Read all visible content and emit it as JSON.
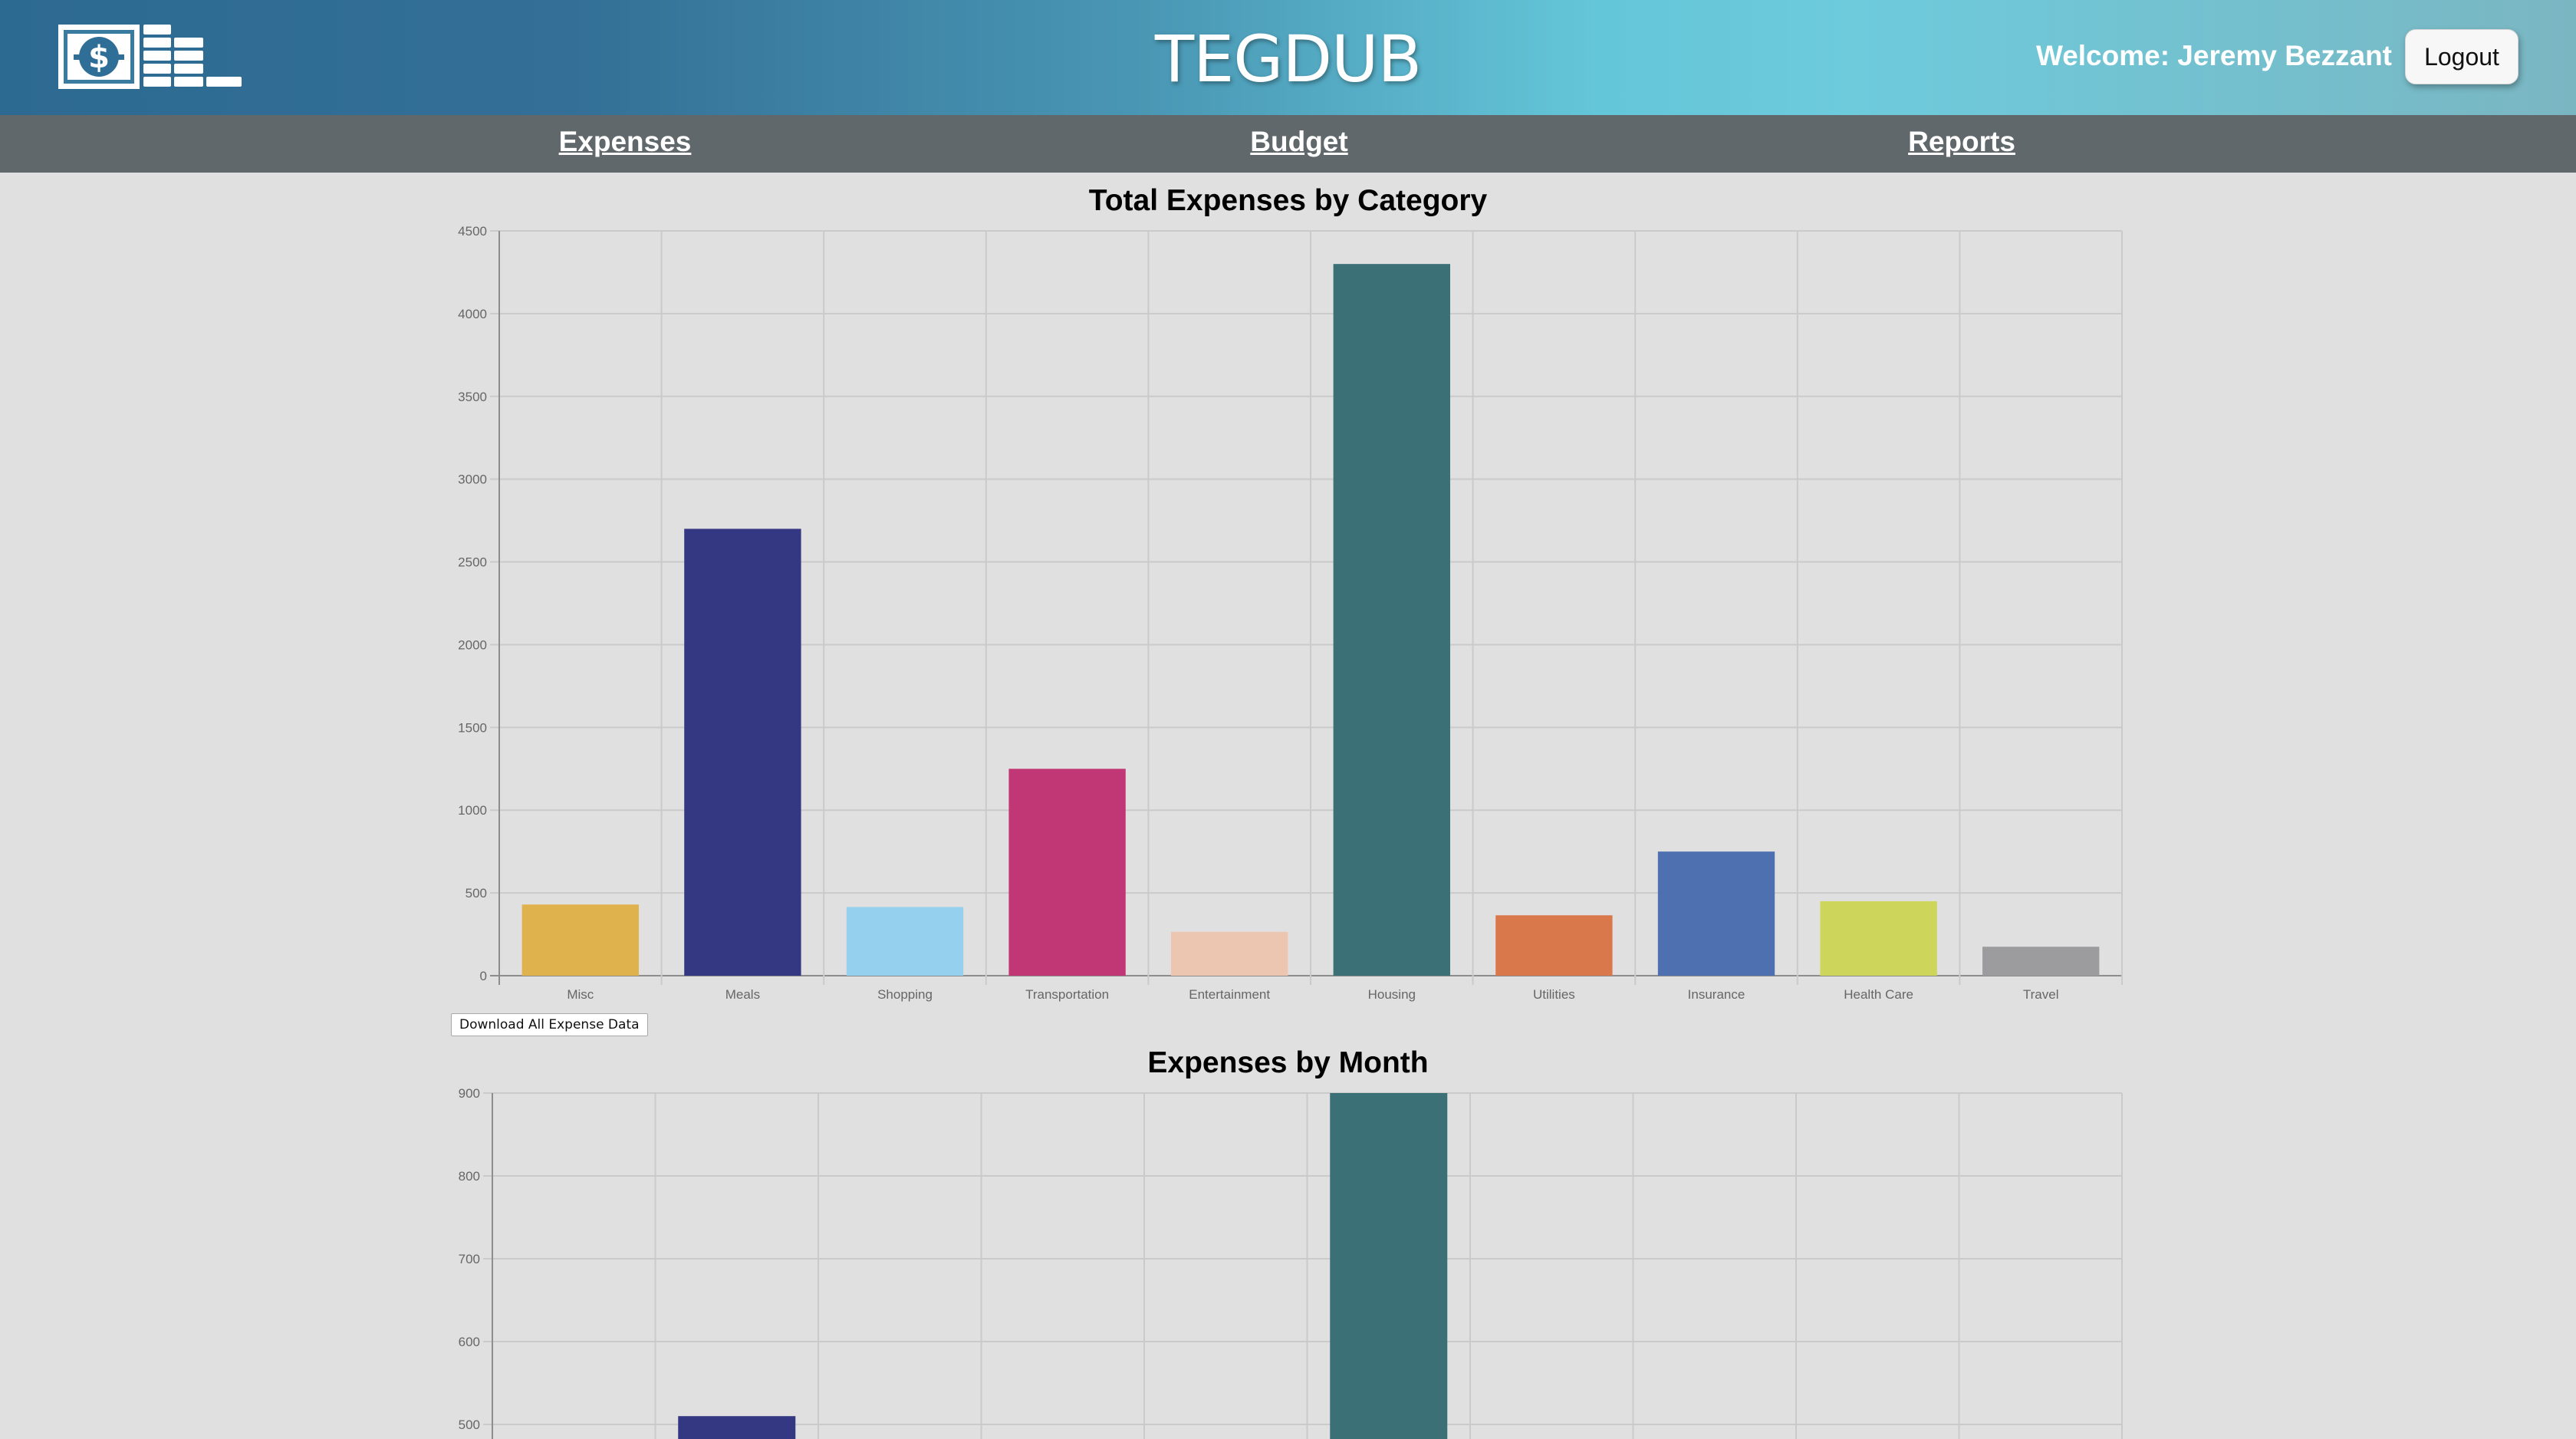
{
  "header": {
    "app_title": "TEGDUB",
    "welcome_text": "Welcome: Jeremy Bezzant",
    "logout_label": "Logout",
    "logo_icon": "money-dollar-bill-stack-icon"
  },
  "nav": {
    "items": [
      {
        "label": "Expenses"
      },
      {
        "label": "Budget"
      },
      {
        "label": "Reports"
      }
    ]
  },
  "download_label": "Download All Expense Data",
  "chart_data": [
    {
      "type": "bar",
      "title": "Total Expenses by Category",
      "categories": [
        "Misc",
        "Meals",
        "Shopping",
        "Transportation",
        "Entertainment",
        "Housing",
        "Utilities",
        "Insurance",
        "Health Care",
        "Travel"
      ],
      "values": [
        430,
        2700,
        415,
        1250,
        265,
        4300,
        365,
        750,
        450,
        175
      ],
      "colors": [
        "#dfb24d",
        "#343781",
        "#96d0ef",
        "#c13674",
        "#ecc6b1",
        "#3b7076",
        "#d8784b",
        "#4e70b0",
        "#cdd65b",
        "#9c9c9f"
      ],
      "ylim": [
        0,
        4500
      ],
      "yticks": [
        0,
        500,
        1000,
        1500,
        2000,
        2500,
        3000,
        3500,
        4000,
        4500
      ],
      "grid": true,
      "legend": "none"
    },
    {
      "type": "bar",
      "title": "Expenses by Month",
      "ylim": [
        0,
        900
      ],
      "yticks": [
        500,
        600,
        700,
        800,
        900
      ],
      "grid": true,
      "legend": "none",
      "visible_bars": [
        {
          "slot": 1,
          "value": 510,
          "color": "#343781"
        },
        {
          "slot": 5,
          "value": 900,
          "color": "#3b7076"
        }
      ]
    }
  ]
}
